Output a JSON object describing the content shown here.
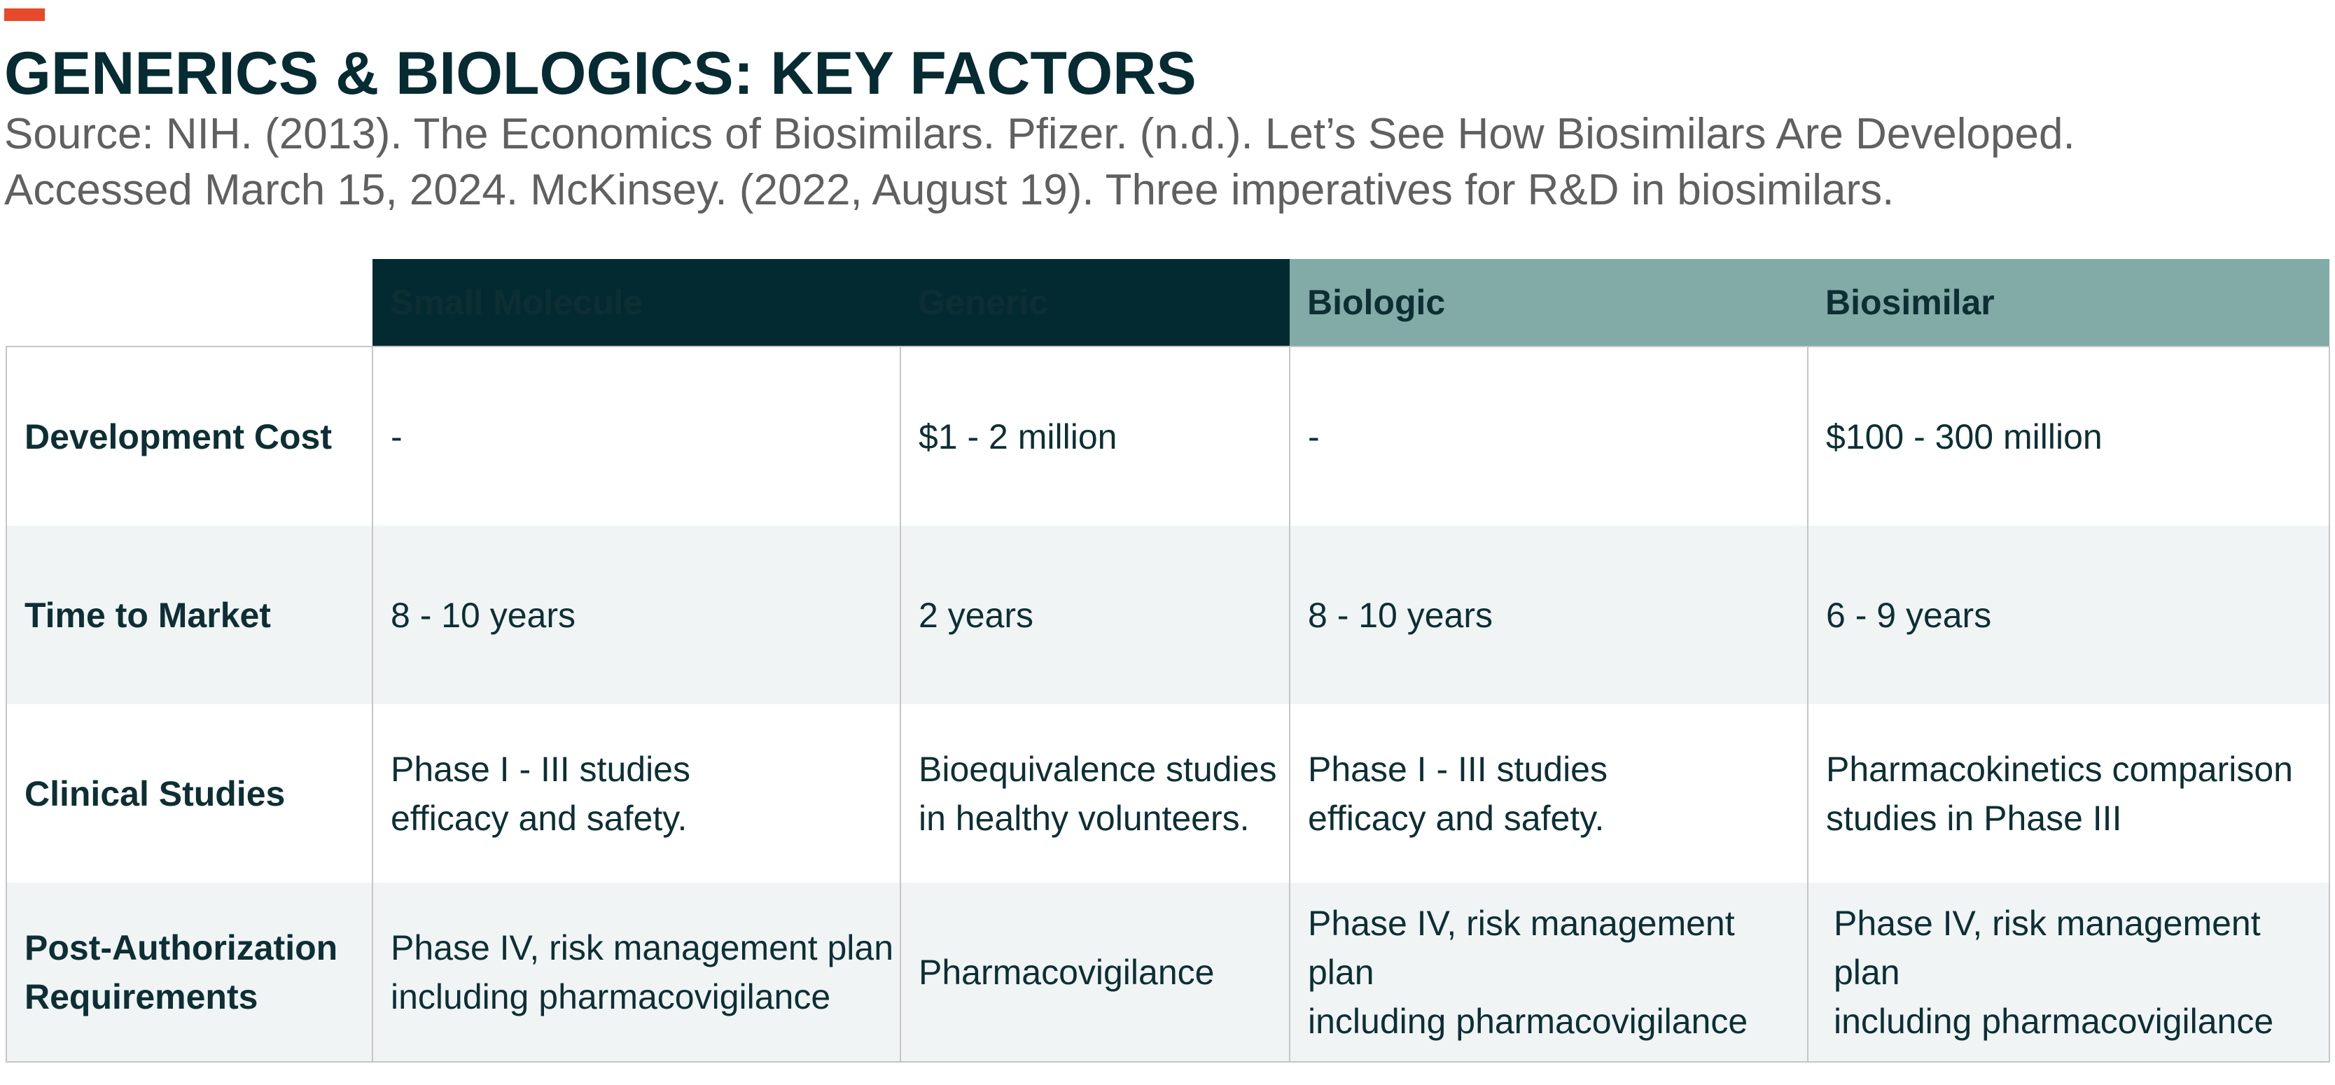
{
  "title": "GENERICS & BIOLOGICS: KEY FACTORS",
  "source_line1": "Source: NIH. (2013). The Economics of Biosimilars. Pfizer. (n.d.). Let’s See How Biosimilars Are Developed.",
  "source_line2": "Accessed March 15, 2024. McKinsey. (2022, August 19). Three imperatives for R&D in biosimilars.",
  "colors": {
    "accent": "#e8492b",
    "dark_header": "#042a31",
    "teal_header": "#82aaa7",
    "alt_row": "#f0f4f5"
  },
  "chart_data": {
    "type": "table",
    "columns": [
      "",
      "Small Molecule",
      "Generic",
      "Biologic",
      "Biosimilar"
    ],
    "rows": [
      {
        "label": "Development Cost",
        "cells": [
          "-",
          "$1 - 2 million",
          "-",
          "$100 - 300 million"
        ]
      },
      {
        "label": "Time to Market",
        "cells": [
          "8 - 10 years",
          "2 years",
          "8 - 10 years",
          "6 - 9 years"
        ]
      },
      {
        "label": "Clinical Studies",
        "cells": [
          [
            "Phase I - III studies",
            "efficacy and safety."
          ],
          [
            "Bioequivalence studies",
            "in healthy volunteers."
          ],
          [
            "Phase I - III studies",
            "efficacy and safety."
          ],
          [
            "Pharmacokinetics comparison",
            "studies in Phase III"
          ]
        ]
      },
      {
        "label": [
          "Post-Authorization",
          "Requirements"
        ],
        "cells": [
          [
            "Phase IV, risk management plan",
            "including pharmacovigilance"
          ],
          [
            "Pharmacovigilance"
          ],
          [
            "Phase IV, risk management plan",
            "including pharmacovigilance"
          ],
          [
            "Phase IV, risk management plan",
            "including pharmacovigilance"
          ]
        ]
      }
    ]
  }
}
